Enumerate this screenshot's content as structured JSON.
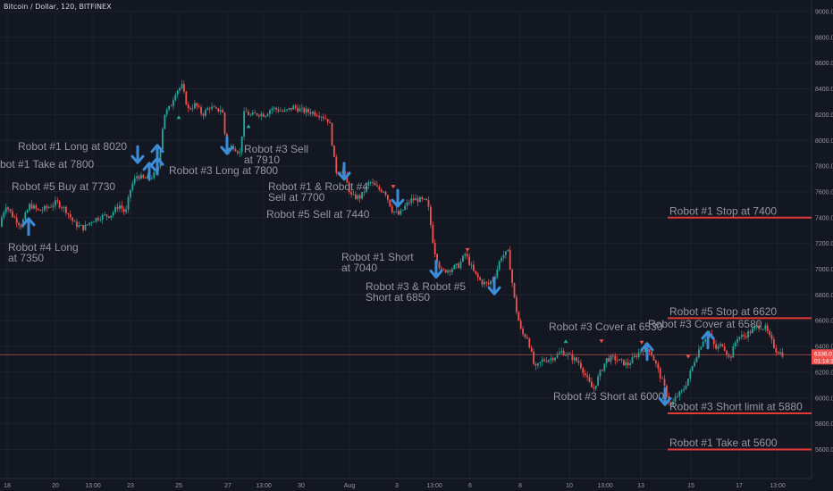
{
  "header": {
    "symbol_title": "Bitcoin / Dollar, 120, BITFINEX"
  },
  "colors": {
    "background": "#131722",
    "up": "#26a69a",
    "down": "#ef5350",
    "grid": "#1e222d",
    "axis_text": "#9598a1",
    "annotation": "#9598a1",
    "arrow": "#3c8cd8",
    "level_line": "#e53935",
    "price_line": "#b85450"
  },
  "chart_data": {
    "type": "candlestick",
    "title": "Bitcoin / Dollar, 120, BITFINEX",
    "ylim": [
      5480,
      9100
    ],
    "y_ticks": [
      "9000.0",
      "8800.0",
      "8600.0",
      "8400.0",
      "8200.0",
      "8000.0",
      "7800.0",
      "7600.0",
      "7400.0",
      "7200.0",
      "7000.0",
      "6800.0",
      "6600.0",
      "6400.0",
      "6200.0",
      "6000.0",
      "5800.0",
      "5600.0"
    ],
    "x_ticks": [
      "18",
      "20",
      "13:00",
      "23",
      "25",
      "27",
      "13:00",
      "30",
      "Aug",
      "3",
      "13:00",
      "6",
      "8",
      "10",
      "13:00",
      "13",
      "15",
      "17",
      "13:00"
    ],
    "current_price": {
      "value": 6336,
      "label": "6336.0",
      "countdown": "01:14:11"
    },
    "price_path": [
      [
        0,
        7330
      ],
      [
        8,
        7500
      ],
      [
        15,
        7420
      ],
      [
        25,
        7340
      ],
      [
        35,
        7500
      ],
      [
        45,
        7450
      ],
      [
        55,
        7480
      ],
      [
        65,
        7520
      ],
      [
        75,
        7460
      ],
      [
        85,
        7350
      ],
      [
        95,
        7320
      ],
      [
        105,
        7380
      ],
      [
        115,
        7410
      ],
      [
        125,
        7420
      ],
      [
        135,
        7500
      ],
      [
        142,
        7430
      ],
      [
        148,
        7640
      ],
      [
        155,
        7730
      ],
      [
        162,
        7700
      ],
      [
        170,
        7710
      ],
      [
        178,
        7760
      ],
      [
        185,
        8200
      ],
      [
        192,
        8260
      ],
      [
        198,
        8380
      ],
      [
        205,
        8420
      ],
      [
        212,
        8240
      ],
      [
        220,
        8280
      ],
      [
        228,
        8200
      ],
      [
        236,
        8260
      ],
      [
        244,
        8230
      ],
      [
        250,
        8250
      ],
      [
        255,
        7920
      ],
      [
        262,
        7960
      ],
      [
        270,
        7900
      ],
      [
        275,
        8230
      ],
      [
        282,
        8190
      ],
      [
        290,
        8210
      ],
      [
        298,
        8200
      ],
      [
        305,
        8250
      ],
      [
        312,
        8240
      ],
      [
        320,
        8220
      ],
      [
        330,
        8260
      ],
      [
        340,
        8230
      ],
      [
        350,
        8220
      ],
      [
        360,
        8200
      ],
      [
        370,
        8150
      ],
      [
        377,
        7760
      ],
      [
        385,
        7760
      ],
      [
        395,
        7560
      ],
      [
        405,
        7560
      ],
      [
        415,
        7680
      ],
      [
        425,
        7620
      ],
      [
        432,
        7610
      ],
      [
        440,
        7460
      ],
      [
        448,
        7420
      ],
      [
        455,
        7490
      ],
      [
        462,
        7540
      ],
      [
        470,
        7540
      ],
      [
        480,
        7520
      ],
      [
        487,
        7160
      ],
      [
        495,
        6980
      ],
      [
        505,
        7000
      ],
      [
        515,
        7030
      ],
      [
        522,
        7120
      ],
      [
        532,
        6970
      ],
      [
        540,
        6900
      ],
      [
        548,
        6880
      ],
      [
        556,
        6960
      ],
      [
        562,
        7100
      ],
      [
        570,
        7130
      ],
      [
        578,
        6720
      ],
      [
        585,
        6500
      ],
      [
        592,
        6470
      ],
      [
        600,
        6220
      ],
      [
        608,
        6290
      ],
      [
        615,
        6300
      ],
      [
        622,
        6320
      ],
      [
        630,
        6360
      ],
      [
        640,
        6320
      ],
      [
        650,
        6270
      ],
      [
        658,
        6150
      ],
      [
        665,
        6060
      ],
      [
        672,
        6180
      ],
      [
        680,
        6300
      ],
      [
        688,
        6310
      ],
      [
        696,
        6280
      ],
      [
        704,
        6260
      ],
      [
        712,
        6320
      ],
      [
        720,
        6380
      ],
      [
        728,
        6380
      ],
      [
        736,
        6250
      ],
      [
        745,
        6080
      ],
      [
        752,
        5930
      ],
      [
        758,
        6010
      ],
      [
        765,
        6050
      ],
      [
        772,
        6160
      ],
      [
        780,
        6320
      ],
      [
        788,
        6450
      ],
      [
        795,
        6500
      ],
      [
        802,
        6380
      ],
      [
        810,
        6420
      ],
      [
        818,
        6300
      ],
      [
        826,
        6470
      ],
      [
        834,
        6480
      ],
      [
        842,
        6520
      ],
      [
        850,
        6560
      ],
      [
        858,
        6540
      ],
      [
        866,
        6420
      ],
      [
        870,
        6370
      ],
      [
        878,
        6336
      ]
    ],
    "levels": [
      {
        "label": "Robot #1 Stop at 7400",
        "value": 7400
      },
      {
        "label": "Robot #5 Stop at 6620",
        "value": 6620
      },
      {
        "label": "Robot #3 Short limit at 5880",
        "value": 5880
      },
      {
        "label": "Robot #1 Take at 5600",
        "value": 5600
      }
    ],
    "annotations": [
      {
        "text": "Robot #1 Long at 8020",
        "line2": ""
      },
      {
        "text": "bot #1 Take at 7800",
        "line2": ""
      },
      {
        "text": "Robot #5 Buy at 7730",
        "line2": ""
      },
      {
        "text": "Robot #4 Long",
        "line2": "at 7350"
      },
      {
        "text": "Robot #3 Long at 7800",
        "line2": ""
      },
      {
        "text": "Robot #3 Sell",
        "line2": "at 7910"
      },
      {
        "text": "Robot #1 & Robot #4",
        "line2": "Sell at 7700"
      },
      {
        "text": "Robot #5 Sell at 7440",
        "line2": ""
      },
      {
        "text": "Robot #1 Short",
        "line2": "at 7040"
      },
      {
        "text": "Robot #3 & Robot #5",
        "line2": "Short at 6850"
      },
      {
        "text": "Robot #3 Cover at 6530",
        "line2": ""
      },
      {
        "text": "Robot #3 Cover at 6580",
        "line2": ""
      },
      {
        "text": "Robot #3 Short at 6000",
        "line2": ""
      }
    ],
    "arrows": [
      {
        "direction": "down",
        "value": 7890
      },
      {
        "direction": "up",
        "value": 7900
      },
      {
        "direction": "up",
        "value": 7800
      },
      {
        "direction": "up",
        "value": 7760
      },
      {
        "direction": "up",
        "value": 7330
      },
      {
        "direction": "down",
        "value": 7960
      },
      {
        "direction": "down",
        "value": 7760
      },
      {
        "direction": "down",
        "value": 7550
      },
      {
        "direction": "down",
        "value": 7000
      },
      {
        "direction": "down",
        "value": 6870
      },
      {
        "direction": "up",
        "value": 6360
      },
      {
        "direction": "up",
        "value": 6450
      },
      {
        "direction": "down",
        "value": 6010
      }
    ]
  }
}
